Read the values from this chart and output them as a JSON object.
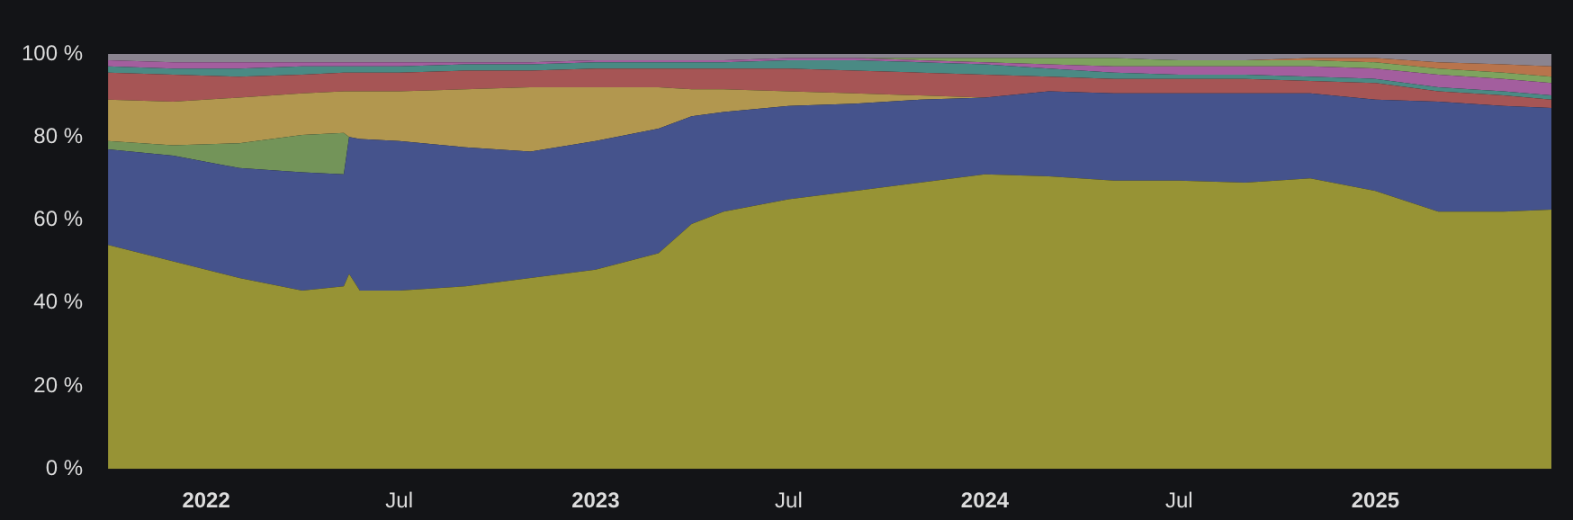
{
  "chart_data": {
    "type": "area",
    "stacked": true,
    "legend": false,
    "grid": false,
    "x": [
      "2021-10-01",
      "2021-12-01",
      "2022-02-01",
      "2022-04-01",
      "2022-05-10",
      "2022-05-15",
      "2022-05-25",
      "2022-07-01",
      "2022-09-01",
      "2022-11-01",
      "2023-01-01",
      "2023-03-01",
      "2023-04-01",
      "2023-05-01",
      "2023-07-01",
      "2023-09-01",
      "2023-11-01",
      "2024-01-01",
      "2024-03-01",
      "2024-05-01",
      "2024-07-01",
      "2024-09-01",
      "2024-11-01",
      "2025-01-01",
      "2025-03-01",
      "2025-05-01",
      "2025-06-15"
    ],
    "xlim": [
      "2021-10-01",
      "2025-06-15"
    ],
    "xticks": [
      {
        "value": "2022-01-01",
        "label": "2022"
      },
      {
        "value": "2022-07-01",
        "label": "Jul"
      },
      {
        "value": "2023-01-01",
        "label": "2023"
      },
      {
        "value": "2023-07-01",
        "label": "Jul"
      },
      {
        "value": "2024-01-01",
        "label": "2024"
      },
      {
        "value": "2024-07-01",
        "label": "Jul"
      },
      {
        "value": "2025-01-01",
        "label": "2025"
      }
    ],
    "ylim": [
      0,
      100
    ],
    "yticks": [
      {
        "value": 0,
        "label": "0 %"
      },
      {
        "value": 20,
        "label": "20 %"
      },
      {
        "value": 40,
        "label": "40 %"
      },
      {
        "value": 60,
        "label": "60 %"
      },
      {
        "value": 80,
        "label": "80 %"
      },
      {
        "value": 100,
        "label": "100 %"
      }
    ],
    "series": [
      {
        "color": "#979335",
        "values": [
          54,
          50,
          46,
          43,
          44,
          47,
          43,
          43,
          44,
          46,
          48,
          52,
          59,
          62,
          65,
          67,
          69,
          71,
          70.5,
          69.5,
          69.5,
          69,
          70,
          67,
          62,
          62,
          62.5
        ]
      },
      {
        "color": "#45538c",
        "values": [
          23,
          25.5,
          26.5,
          28.5,
          27,
          33,
          36.5,
          36,
          33.5,
          30.5,
          31,
          30,
          26,
          24,
          22.5,
          21,
          20,
          18.5,
          20.5,
          21,
          21,
          21.5,
          20.5,
          22,
          26.5,
          25.5,
          24.5
        ]
      },
      {
        "color": "#739459",
        "values": [
          2,
          2.5,
          6,
          9,
          10,
          0,
          0,
          0,
          0,
          0,
          0,
          0,
          0,
          0,
          0,
          0,
          0,
          0,
          0,
          0,
          0,
          0,
          0,
          0,
          0,
          0,
          0
        ]
      },
      {
        "color": "#b2974f",
        "values": [
          10,
          10.5,
          11,
          10,
          10,
          11,
          11.5,
          12,
          14,
          15.5,
          13,
          10,
          6.5,
          5.5,
          3.5,
          2.5,
          1,
          0,
          0,
          0,
          0,
          0,
          0,
          0,
          0,
          0,
          0
        ]
      },
      {
        "color": "#a65555",
        "values": [
          6.5,
          6.5,
          5,
          4.5,
          4.5,
          4.5,
          4.5,
          4.5,
          4.5,
          4,
          4.5,
          4.5,
          5,
          5,
          5.5,
          5.5,
          5.5,
          5.5,
          3.5,
          3.5,
          3.5,
          3.5,
          3,
          4,
          2.5,
          2.5,
          2
        ]
      },
      {
        "color": "#4a8a84",
        "values": [
          1.5,
          1.5,
          2,
          2,
          1.5,
          1.5,
          1.5,
          1.5,
          1.5,
          1.5,
          1.5,
          1.5,
          1.5,
          1.5,
          2,
          2.5,
          2.5,
          2.5,
          2,
          1.5,
          1,
          1,
          1,
          1,
          1,
          1,
          1
        ]
      },
      {
        "color": "#a35e9e",
        "values": [
          1.5,
          1.5,
          1.5,
          1,
          1,
          1,
          1,
          1,
          0.5,
          0.5,
          0.5,
          0.5,
          0.5,
          0.5,
          0.5,
          0.5,
          0.5,
          0.5,
          1,
          1.5,
          2,
          2,
          2.5,
          2.5,
          3,
          3,
          3
        ]
      },
      {
        "color": "#7ea35e",
        "values": [
          0,
          0,
          0,
          0,
          0,
          0,
          0,
          0,
          0,
          0,
          0,
          0,
          0,
          0,
          0,
          0,
          0.5,
          1,
          1.5,
          2,
          1.5,
          1.5,
          1.5,
          1.5,
          1.5,
          1.5,
          1.5
        ]
      },
      {
        "color": "#b8744c",
        "values": [
          0,
          0,
          0,
          0,
          0,
          0,
          0,
          0,
          0,
          0,
          0,
          0,
          0,
          0,
          0,
          0,
          0,
          0,
          0,
          0,
          0,
          0,
          0.5,
          1,
          1.5,
          2,
          2.5
        ]
      },
      {
        "color": "#8a8490",
        "values": [
          1.5,
          2,
          2,
          2,
          2,
          2,
          2,
          2,
          2,
          2,
          1.5,
          1.5,
          1.5,
          1.5,
          1,
          1,
          1,
          1,
          1,
          1,
          1.5,
          1.5,
          1,
          1,
          2,
          2.5,
          3
        ]
      }
    ]
  }
}
